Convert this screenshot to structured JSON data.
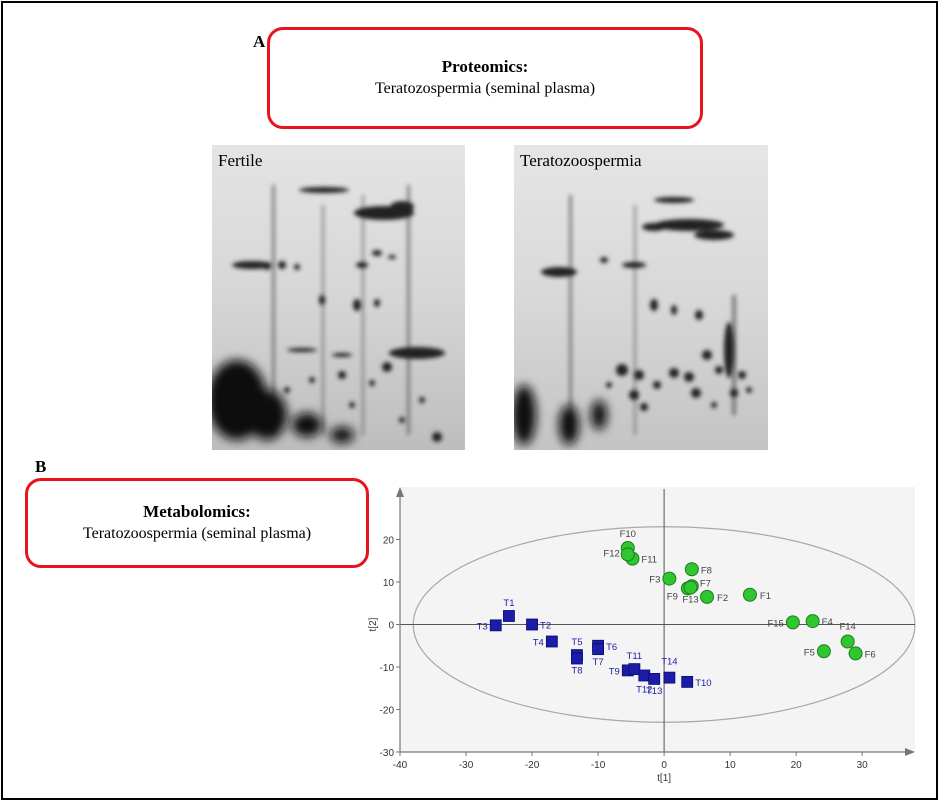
{
  "panel_a": {
    "letter": "A",
    "box_title": "Proteomics:",
    "box_subtitle": "Teratozospermia (seminal plasma)",
    "gels": [
      {
        "label": "Fertile"
      },
      {
        "label": "Teratozoospermia"
      }
    ]
  },
  "panel_b": {
    "letter": "B",
    "box_title": "Metabolomics:",
    "box_subtitle": "Teratozoospermia (seminal plasma)"
  },
  "colors": {
    "frame": "#000000",
    "box_border": "#e8141b",
    "fertile": "#2fc72f",
    "terato": "#1c1ca8",
    "ellipse": "#a8a8a8"
  },
  "chart_data": {
    "type": "scatter",
    "xlabel": "t[1]",
    "ylabel": "t[2]",
    "xlim": [
      -40,
      38
    ],
    "ylim": [
      -30,
      30
    ],
    "xticks": [
      -40,
      -30,
      -20,
      -10,
      0,
      10,
      20,
      30
    ],
    "yticks": [
      -30,
      -20,
      -10,
      0,
      10,
      20
    ],
    "grid": false,
    "series": [
      {
        "name": "",
        "marker": "circle",
        "color": "#2fc72f",
        "points": [
          {
            "label": "F1",
            "x": 13,
            "y": 7
          },
          {
            "label": "F2",
            "x": 6.5,
            "y": 6.5
          },
          {
            "label": "F3",
            "x": 0.8,
            "y": 10.8
          },
          {
            "label": "F4",
            "x": 22.5,
            "y": 0.8
          },
          {
            "label": "F5",
            "x": 24.2,
            "y": -6.3
          },
          {
            "label": "F6",
            "x": 29,
            "y": -6.8
          },
          {
            "label": "F7",
            "x": 4.2,
            "y": 9
          },
          {
            "label": "F8",
            "x": 4.2,
            "y": 13
          },
          {
            "label": "F9",
            "x": 3.6,
            "y": 8.5
          },
          {
            "label": "F10",
            "x": -5.5,
            "y": 18
          },
          {
            "label": "F11",
            "x": -4.8,
            "y": 15.5
          },
          {
            "label": "F12",
            "x": -5.5,
            "y": 16.5
          },
          {
            "label": "F13",
            "x": 4.0,
            "y": 8.7
          },
          {
            "label": "F14",
            "x": 27.8,
            "y": -4
          },
          {
            "label": "F15",
            "x": 19.5,
            "y": 0.5
          }
        ]
      },
      {
        "name": "",
        "marker": "square",
        "color": "#1c1ca8",
        "points": [
          {
            "label": "T1",
            "x": -23.5,
            "y": 2
          },
          {
            "label": "T2",
            "x": -20,
            "y": 0
          },
          {
            "label": "T3",
            "x": -25.5,
            "y": -0.2
          },
          {
            "label": "T4",
            "x": -17,
            "y": -4
          },
          {
            "label": "T5",
            "x": -13.2,
            "y": -7.2
          },
          {
            "label": "T6",
            "x": -10,
            "y": -5
          },
          {
            "label": "T7",
            "x": -10,
            "y": -5.8
          },
          {
            "label": "T8",
            "x": -13.2,
            "y": -8
          },
          {
            "label": "T9",
            "x": -5.5,
            "y": -10.8
          },
          {
            "label": "T10",
            "x": 3.5,
            "y": -13.5
          },
          {
            "label": "T11",
            "x": -4.5,
            "y": -10.5
          },
          {
            "label": "T12",
            "x": -3,
            "y": -12
          },
          {
            "label": "T13",
            "x": -1.5,
            "y": -12.8
          },
          {
            "label": "T14",
            "x": 0.8,
            "y": -12.5
          }
        ]
      }
    ],
    "ellipse": {
      "cx": 0,
      "cy": 0,
      "rx": 38,
      "ry": 23
    }
  }
}
